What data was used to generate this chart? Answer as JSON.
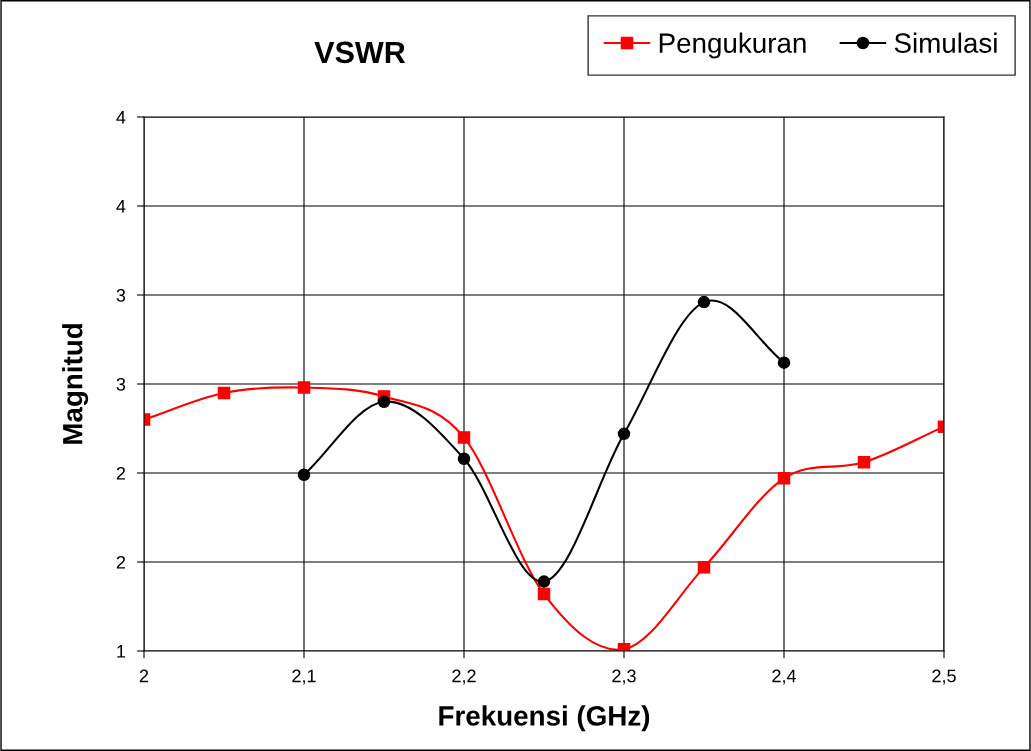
{
  "chart_data": {
    "type": "line",
    "title": "VSWR",
    "xlabel": "Frekuensi (GHz)",
    "ylabel": "Magnitud",
    "x": [
      2.0,
      2.05,
      2.1,
      2.15,
      2.2,
      2.25,
      2.3,
      2.35,
      2.4,
      2.45,
      2.5
    ],
    "series": [
      {
        "name": "Pengukuran",
        "color": "#ff0000",
        "marker": "square",
        "values": [
          2.3,
          2.45,
          2.48,
          2.43,
          2.2,
          1.32,
          1.01,
          1.47,
          1.97,
          2.06,
          2.26
        ]
      },
      {
        "name": "Simulasi",
        "color": "#000000",
        "marker": "circle",
        "x": [
          2.1,
          2.15,
          2.2,
          2.25,
          2.3,
          2.35,
          2.4
        ],
        "values": [
          1.99,
          2.4,
          2.08,
          1.39,
          2.22,
          2.96,
          2.62
        ]
      }
    ],
    "xlim": [
      2.0,
      2.5
    ],
    "xticks": [
      {
        "value": 2.0,
        "label": "2"
      },
      {
        "value": 2.1,
        "label": "2,1"
      },
      {
        "value": 2.2,
        "label": "2,2"
      },
      {
        "value": 2.3,
        "label": "2,3"
      },
      {
        "value": 2.4,
        "label": "2,4"
      },
      {
        "value": 2.5,
        "label": "2,5"
      }
    ],
    "ylim": [
      1,
      4
    ],
    "yticks": [
      1,
      {
        "value": 1.5,
        "label": "2"
      },
      2,
      {
        "value": 2.5,
        "label": "3"
      },
      3,
      {
        "value": 3.5,
        "label": "4"
      },
      4
    ],
    "grid": true,
    "legend": "top right",
    "line_style": "solid"
  }
}
